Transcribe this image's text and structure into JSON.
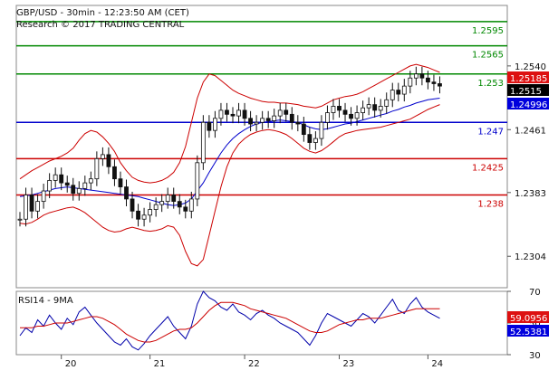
{
  "header": {
    "line1": "GBP/USD - 30min - 12:23:50 AM (CET)",
    "line2": "Research © 2017 TRADING CENTRAL"
  },
  "colors": {
    "candle": "#111111",
    "bollinger": "#cc0000",
    "ma": "#0000cc",
    "resistance": "#008800",
    "pivot": "#0000cc",
    "support": "#cc0000",
    "forecast": "#000066",
    "rsi": "#0000aa",
    "rsi_ma": "#cc0000",
    "badge_red": "#dd1111",
    "badge_black": "#000000",
    "badge_blue": "#0000dd"
  },
  "chart_data": [
    {
      "type": "candlestick",
      "title": "GBP/USD - 30min - 12:23:50 AM (CET)",
      "subtitle": "Research © 2017 TRADING CENTRAL",
      "ylim": [
        1.2265,
        1.2615
      ],
      "y_ticks": [
        "1.2540",
        "1.2461",
        "1.2383",
        "1.2304"
      ],
      "x_ticks": [
        "20",
        "21",
        "22",
        "23",
        "24"
      ],
      "levels": [
        {
          "label": "1.2595",
          "value": 1.2595,
          "kind": "resistance"
        },
        {
          "label": "1.2565",
          "value": 1.2565,
          "kind": "resistance"
        },
        {
          "label": "1.253",
          "value": 1.253,
          "kind": "resistance"
        },
        {
          "label": "1.247",
          "value": 1.247,
          "kind": "pivot"
        },
        {
          "label": "1.2425",
          "value": 1.2425,
          "kind": "support"
        },
        {
          "label": "1.238",
          "value": 1.238,
          "kind": "support"
        }
      ],
      "badges": [
        {
          "label": "1.25185",
          "value": 1.25185,
          "color": "badge_red"
        },
        {
          "label": "1.2515",
          "value": 1.2515,
          "color": "badge_black"
        },
        {
          "label": "1.24996",
          "value": 1.24996,
          "color": "badge_blue"
        }
      ],
      "forecast": [
        [
          94.6,
          1.2513
        ],
        [
          95.3,
          1.2502
        ],
        [
          96.8,
          1.2565
        ]
      ],
      "series": [
        {
          "name": "price",
          "values": [
            1.235,
            1.238,
            1.236,
            1.2372,
            1.2385,
            1.2398,
            1.2405,
            1.2395,
            1.2392,
            1.2382,
            1.2388,
            1.2395,
            1.24,
            1.2425,
            1.243,
            1.2415,
            1.24,
            1.239,
            1.2375,
            1.236,
            1.235,
            1.2355,
            1.2362,
            1.2368,
            1.2372,
            1.238,
            1.2372,
            1.2365,
            1.236,
            1.2375,
            1.242,
            1.247,
            1.246,
            1.2475,
            1.2485,
            1.248,
            1.2478,
            1.2485,
            1.2475,
            1.2468,
            1.247,
            1.2475,
            1.2472,
            1.2478,
            1.2485,
            1.248,
            1.247,
            1.2468,
            1.2455,
            1.2445,
            1.245,
            1.247,
            1.2482,
            1.249,
            1.2485,
            1.248,
            1.2475,
            1.2482,
            1.2488,
            1.2492,
            1.2485,
            1.249,
            1.2498,
            1.251,
            1.2505,
            1.2515,
            1.2525,
            1.253,
            1.2525,
            1.252,
            1.2518,
            1.2515
          ]
        },
        {
          "name": "ma",
          "values": [
            1.2378,
            1.2379,
            1.238,
            1.2382,
            1.2384,
            1.2386,
            1.2388,
            1.2389,
            1.239,
            1.2389,
            1.2388,
            1.2387,
            1.2386,
            1.2385,
            1.2384,
            1.2383,
            1.2382,
            1.2381,
            1.238,
            1.2379,
            1.2378,
            1.2376,
            1.2374,
            1.2372,
            1.237,
            1.2368,
            1.2367,
            1.2368,
            1.237,
            1.2375,
            1.2385,
            1.2395,
            1.2408,
            1.242,
            1.2432,
            1.2442,
            1.245,
            1.2456,
            1.2461,
            1.2465,
            1.2468,
            1.247,
            1.2471,
            1.2472,
            1.2473,
            1.2472,
            1.2471,
            1.247,
            1.2467,
            1.2464,
            1.2462,
            1.2461,
            1.2462,
            1.2464,
            1.2466,
            1.2468,
            1.2469,
            1.2471,
            1.2473,
            1.2475,
            1.2477,
            1.2479,
            1.2481,
            1.2484,
            1.2486,
            1.2489,
            1.2491,
            1.2494,
            1.2496,
            1.2498,
            1.2499,
            1.25
          ]
        },
        {
          "name": "bollinger_upper",
          "values": [
            1.24,
            1.2405,
            1.241,
            1.2414,
            1.2418,
            1.2422,
            1.2425,
            1.2428,
            1.2432,
            1.2438,
            1.2448,
            1.2456,
            1.246,
            1.2458,
            1.2452,
            1.2444,
            1.2434,
            1.242,
            1.241,
            1.2402,
            1.2398,
            1.2396,
            1.2395,
            1.2396,
            1.2398,
            1.2402,
            1.2408,
            1.242,
            1.244,
            1.247,
            1.25,
            1.252,
            1.253,
            1.2528,
            1.2522,
            1.2516,
            1.251,
            1.2506,
            1.2503,
            1.25,
            1.2498,
            1.2496,
            1.2495,
            1.2495,
            1.2494,
            1.2494,
            1.2493,
            1.2492,
            1.249,
            1.2489,
            1.2488,
            1.249,
            1.2494,
            1.2498,
            1.25,
            1.2502,
            1.2503,
            1.2505,
            1.2508,
            1.2512,
            1.2516,
            1.252,
            1.2524,
            1.2528,
            1.2532,
            1.2536,
            1.254,
            1.2542,
            1.254,
            1.2538,
            1.2535,
            1.2532
          ]
        },
        {
          "name": "bollinger_lower",
          "values": [
            1.2345,
            1.2344,
            1.2346,
            1.235,
            1.2355,
            1.2358,
            1.236,
            1.2362,
            1.2364,
            1.2365,
            1.2362,
            1.2358,
            1.2352,
            1.2346,
            1.234,
            1.2336,
            1.2334,
            1.2335,
            1.2338,
            1.234,
            1.2338,
            1.2336,
            1.2335,
            1.2336,
            1.2338,
            1.2342,
            1.234,
            1.233,
            1.231,
            1.2295,
            1.2292,
            1.23,
            1.233,
            1.236,
            1.239,
            1.2415,
            1.2432,
            1.2443,
            1.245,
            1.2455,
            1.2458,
            1.246,
            1.2461,
            1.246,
            1.2458,
            1.2455,
            1.245,
            1.2444,
            1.2438,
            1.2434,
            1.2432,
            1.2435,
            1.244,
            1.2446,
            1.2452,
            1.2456,
            1.2458,
            1.246,
            1.2461,
            1.2462,
            1.2463,
            1.2464,
            1.2466,
            1.2468,
            1.247,
            1.2472,
            1.2474,
            1.2478,
            1.2482,
            1.2486,
            1.2489,
            1.2492
          ]
        }
      ]
    },
    {
      "type": "line",
      "title": "RSI14 - 9MA",
      "ylim": [
        30,
        70
      ],
      "y_ticks": [
        "70",
        "50",
        "30"
      ],
      "badges": [
        {
          "label": "59.0956",
          "value": 59.0956,
          "color": "badge_red"
        },
        {
          "label": "52.5381",
          "value": 52.5381,
          "color": "badge_blue"
        }
      ],
      "series": [
        {
          "name": "rsi",
          "values": [
            42,
            47,
            44,
            52,
            48,
            55,
            50,
            46,
            53,
            49,
            57,
            60,
            55,
            50,
            46,
            42,
            38,
            36,
            40,
            35,
            33,
            37,
            42,
            46,
            50,
            54,
            48,
            44,
            40,
            48,
            62,
            70,
            66,
            64,
            60,
            58,
            62,
            57,
            55,
            52,
            56,
            58,
            55,
            53,
            50,
            48,
            46,
            44,
            40,
            36,
            42,
            50,
            56,
            54,
            52,
            50,
            48,
            52,
            56,
            54,
            50,
            55,
            60,
            65,
            58,
            56,
            62,
            66,
            60,
            57,
            55,
            53
          ]
        },
        {
          "name": "rsi_ma",
          "values": [
            47,
            47,
            47,
            48,
            48,
            49,
            50,
            50,
            50,
            51,
            52,
            53,
            54,
            54,
            53,
            51,
            49,
            46,
            43,
            41,
            39,
            38,
            38,
            39,
            41,
            43,
            45,
            46,
            46,
            47,
            50,
            54,
            58,
            61,
            63,
            63,
            63,
            62,
            61,
            59,
            58,
            57,
            56,
            55,
            54,
            53,
            51,
            49,
            47,
            45,
            44,
            44,
            45,
            47,
            49,
            50,
            51,
            52,
            52,
            53,
            53,
            53,
            54,
            55,
            56,
            57,
            58,
            59,
            59,
            59,
            59,
            59
          ]
        }
      ]
    }
  ]
}
